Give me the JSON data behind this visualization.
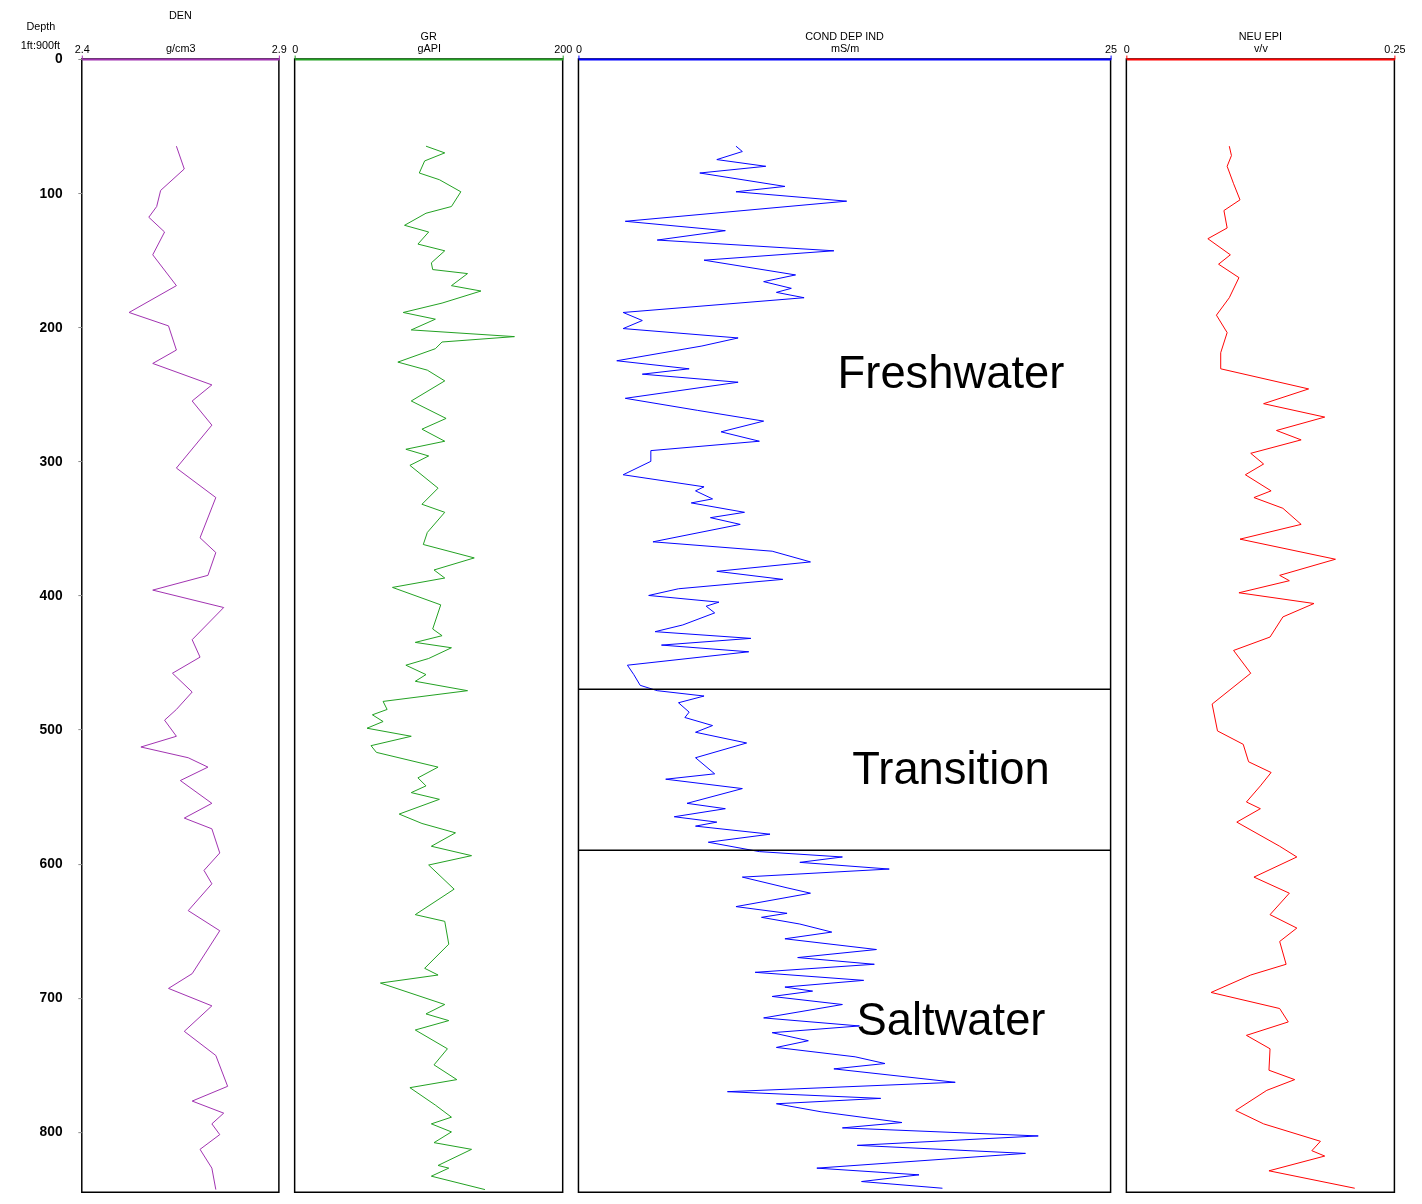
{
  "chart_data": [
    {
      "type": "line",
      "title": "DEN",
      "xlabel": "g/cm3",
      "ylabel": "Depth",
      "annotations": [
        "1ft:900ft"
      ],
      "xlim": [
        2.4,
        2.9
      ],
      "xticks": [
        2.4,
        2.9
      ],
      "ylim": [
        845,
        0
      ],
      "yticks": [
        0,
        100,
        200,
        300,
        400,
        500,
        600,
        700,
        800
      ],
      "marker": "none",
      "line_style": "solid",
      "grid": false,
      "series": [
        {
          "color": "#a030b0",
          "x": [
            2.64,
            2.66,
            2.6,
            2.59,
            2.57,
            2.61,
            2.58,
            2.64,
            2.52,
            2.62,
            2.64,
            2.58,
            2.73,
            2.68,
            2.73,
            2.64,
            2.74,
            2.7,
            2.74,
            2.72,
            2.58,
            2.76,
            2.68,
            2.7,
            2.63,
            2.68,
            2.64,
            2.61,
            2.64,
            2.55,
            2.67,
            2.72,
            2.65,
            2.73,
            2.66,
            2.73,
            2.75,
            2.71,
            2.73,
            2.67,
            2.75,
            2.68,
            2.62,
            2.73,
            2.66,
            2.74,
            2.77,
            2.68,
            2.76,
            2.73,
            2.75,
            2.7,
            2.73,
            2.74
          ],
          "values": [
            65,
            82,
            98,
            110,
            118,
            129,
            146,
            169,
            189,
            199,
            217,
            227,
            243,
            255,
            273,
            305,
            327,
            357,
            368,
            385,
            396,
            409,
            433,
            446,
            458,
            472,
            485,
            493,
            505,
            513,
            521,
            528,
            538,
            555,
            566,
            574,
            592,
            605,
            615,
            635,
            650,
            682,
            693,
            706,
            725,
            743,
            766,
            777,
            786,
            794,
            802,
            813,
            827,
            843
          ]
        }
      ]
    },
    {
      "type": "line",
      "title": "GR",
      "xlabel": "gAPI",
      "xlim": [
        0,
        200
      ],
      "xticks": [
        0,
        200
      ],
      "ylim": [
        845,
        0
      ],
      "yticks": [
        0,
        100,
        200,
        300,
        400,
        500,
        600,
        700,
        800
      ],
      "tick_labels": "x",
      "marker": "none",
      "line_style": "solid",
      "grid": false,
      "series": [
        {
          "color": "#20a020",
          "x": [
            98,
            112,
            97,
            93,
            108,
            124,
            117,
            98,
            82,
            100,
            92,
            112,
            102,
            103,
            129,
            117,
            139,
            110,
            81,
            105,
            87,
            164,
            110,
            105,
            77,
            99,
            112,
            87,
            113,
            95,
            112,
            83,
            100,
            86,
            107,
            95,
            112,
            99,
            96,
            134,
            104,
            112,
            73,
            109,
            103,
            110,
            90,
            117,
            100,
            83,
            98,
            90,
            129,
            66,
            69,
            58,
            66,
            54,
            87,
            57,
            61,
            107,
            92,
            98,
            87,
            108,
            78,
            95,
            120,
            102,
            132,
            100,
            119,
            90,
            112,
            115,
            97,
            107,
            64,
            112,
            98,
            115,
            90,
            114,
            104,
            121,
            86,
            105,
            117,
            102,
            117,
            104,
            132,
            107,
            115,
            102,
            142
          ],
          "values": [
            65,
            70,
            76,
            85,
            90,
            99,
            110,
            115,
            124,
            129,
            138,
            143,
            152,
            157,
            160,
            169,
            173,
            182,
            189,
            194,
            202,
            207,
            211,
            216,
            226,
            232,
            240,
            255,
            268,
            276,
            285,
            291,
            296,
            303,
            320,
            332,
            338,
            353,
            362,
            372,
            381,
            387,
            394,
            407,
            425,
            430,
            435,
            439,
            447,
            452,
            459,
            464,
            471,
            479,
            485,
            489,
            494,
            499,
            505,
            512,
            517,
            528,
            536,
            542,
            547,
            552,
            563,
            570,
            577,
            587,
            594,
            601,
            619,
            638,
            643,
            660,
            678,
            683,
            689,
            705,
            712,
            717,
            724,
            738,
            750,
            761,
            767,
            780,
            789,
            794,
            800,
            808,
            813,
            825,
            827,
            833,
            843
          ]
        }
      ]
    },
    {
      "type": "line",
      "title": "COND DEP IND",
      "xlabel": "mS/m",
      "annotations": [
        "Freshwater",
        "Transition",
        "Saltwater"
      ],
      "xlim": [
        0,
        25
      ],
      "xticks": [
        0,
        25
      ],
      "ylim": [
        845,
        0
      ],
      "yticks": [
        0,
        100,
        200,
        300,
        400,
        500,
        600,
        700,
        800
      ],
      "tick_labels": "x",
      "marker": "none",
      "line_style": "solid",
      "grid": false,
      "ref_lines": [
        {
          "axis": "y",
          "value": 470
        },
        {
          "axis": "y",
          "value": 590
        }
      ],
      "series": [
        {
          "color": "#0000ff",
          "x": [
            7.4,
            7.7,
            6.5,
            8.8,
            5.7,
            9.7,
            7.4,
            12.6,
            2.2,
            6.9,
            3.7,
            12.0,
            5.9,
            10.2,
            8.7,
            10.0,
            9.3,
            10.6,
            2.1,
            3.0,
            2.1,
            7.5,
            5.8,
            1.8,
            5.2,
            3.0,
            7.5,
            2.2,
            5.6,
            8.7,
            6.7,
            8.5,
            3.4,
            3.4,
            2.1,
            5.9,
            5.5,
            6.3,
            5.3,
            7.8,
            6.2,
            7.6,
            3.5,
            9.1,
            10.9,
            6.5,
            9.6,
            4.7,
            3.3,
            6.6,
            6.0,
            6.4,
            4.9,
            3.6,
            8.1,
            3.9,
            8.0,
            2.3,
            2.6,
            2.9,
            3.7,
            5.9,
            4.7,
            5.2,
            5.0,
            6.3,
            5.5,
            7.9,
            5.5,
            6.4,
            4.1,
            7.7,
            5.1,
            6.9,
            4.5,
            6.5,
            5.5,
            9.0,
            6.1,
            8.5,
            12.4,
            10.4,
            14.6,
            7.7,
            9.8,
            10.9,
            7.4,
            9.8,
            8.6,
            10.4,
            11.9,
            9.7,
            14.0,
            10.3,
            13.9,
            8.3,
            13.4,
            9.7,
            11.0,
            9.1,
            12.4,
            8.7,
            13.2,
            9.1,
            10.8,
            9.3,
            13.0,
            14.4,
            12.0,
            17.7,
            7.0,
            14.2,
            9.3,
            11.4,
            15.2,
            12.4,
            21.6,
            13.1,
            21.0,
            11.2,
            16.0,
            13.3,
            17.1
          ],
          "values": [
            65,
            69,
            75,
            80,
            85,
            95,
            99,
            106,
            121,
            128,
            135,
            143,
            150,
            161,
            166,
            171,
            174,
            178,
            189,
            195,
            201,
            208,
            214,
            225,
            231,
            235,
            241,
            253,
            262,
            270,
            278,
            285,
            292,
            300,
            310,
            319,
            322,
            328,
            331,
            338,
            342,
            347,
            360,
            367,
            375,
            382,
            388,
            395,
            400,
            405,
            408,
            413,
            422,
            427,
            432,
            437,
            442,
            452,
            459,
            467,
            471,
            475,
            480,
            487,
            491,
            497,
            502,
            510,
            521,
            533,
            537,
            544,
            555,
            559,
            565,
            569,
            572,
            578,
            584,
            591,
            595,
            599,
            604,
            610,
            618,
            622,
            632,
            637,
            640,
            645,
            651,
            656,
            664,
            670,
            675,
            681,
            687,
            692,
            695,
            699,
            705,
            715,
            721,
            726,
            732,
            737,
            744,
            749,
            753,
            763,
            770,
            775,
            779,
            785,
            793,
            797,
            803,
            810,
            816,
            827,
            832,
            837,
            842
          ]
        }
      ]
    },
    {
      "type": "line",
      "title": "NEU  EPI",
      "xlabel": "v/v",
      "xlim": [
        0,
        0.25
      ],
      "xticks": [
        0,
        0.25
      ],
      "ylim": [
        845,
        0
      ],
      "yticks": [
        0,
        100,
        200,
        300,
        400,
        500,
        600,
        700,
        800
      ],
      "tick_labels": "x",
      "marker": "none",
      "line_style": "solid",
      "grid": false,
      "series": [
        {
          "color": "#ff0000",
          "x": [
            0.096,
            0.098,
            0.094,
            0.1,
            0.106,
            0.091,
            0.094,
            0.076,
            0.097,
            0.086,
            0.105,
            0.096,
            0.084,
            0.094,
            0.088,
            0.088,
            0.17,
            0.128,
            0.185,
            0.14,
            0.163,
            0.116,
            0.128,
            0.111,
            0.135,
            0.119,
            0.146,
            0.163,
            0.106,
            0.195,
            0.143,
            0.152,
            0.105,
            0.175,
            0.146,
            0.134,
            0.1,
            0.116,
            0.08,
            0.085,
            0.109,
            0.114,
            0.135,
            0.125,
            0.112,
            0.125,
            0.103,
            0.143,
            0.159,
            0.119,
            0.152,
            0.134,
            0.159,
            0.143,
            0.149,
            0.116,
            0.079,
            0.143,
            0.151,
            0.112,
            0.134,
            0.133,
            0.157,
            0.131,
            0.102,
            0.128,
            0.181,
            0.173,
            0.185,
            0.133,
            0.213
          ],
          "values": [
            65,
            72,
            80,
            93,
            105,
            113,
            126,
            134,
            146,
            153,
            163,
            178,
            191,
            204,
            219,
            231,
            246,
            257,
            267,
            277,
            284,
            294,
            302,
            310,
            322,
            327,
            335,
            347,
            358,
            373,
            385,
            389,
            398,
            406,
            416,
            431,
            441,
            458,
            481,
            501,
            511,
            524,
            532,
            542,
            554,
            559,
            569,
            587,
            595,
            610,
            622,
            638,
            648,
            658,
            675,
            683,
            696,
            708,
            718,
            728,
            738,
            754,
            761,
            769,
            784,
            794,
            807,
            814,
            818,
            829,
            842
          ]
        }
      ]
    }
  ]
}
